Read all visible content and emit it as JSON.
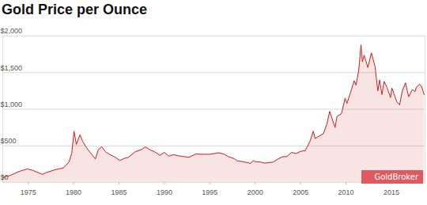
{
  "chart_data": {
    "type": "area",
    "title": "Gold Price per Ounce",
    "x": [
      1972.2,
      1973.0,
      1974.0,
      1974.9,
      1975.5,
      1976.6,
      1977.0,
      1978.0,
      1978.9,
      1979.5,
      1979.8,
      1980.05,
      1980.3,
      1980.7,
      1981.0,
      1981.5,
      1982.4,
      1982.7,
      1983.1,
      1983.5,
      1984.0,
      1984.5,
      1985.1,
      1985.6,
      1986.0,
      1986.8,
      1987.5,
      1987.9,
      1988.5,
      1988.9,
      1989.5,
      1990.0,
      1990.5,
      1991.0,
      1991.5,
      1992.0,
      1992.7,
      1993.5,
      1994.0,
      1995.0,
      1996.0,
      1996.6,
      1997.0,
      1997.7,
      1998.0,
      1998.6,
      1999.5,
      1999.8,
      2000.0,
      2000.5,
      2001.0,
      2001.5,
      2002.0,
      2002.5,
      2003.0,
      2003.5,
      2004.0,
      2004.5,
      2005.0,
      2005.5,
      2006.0,
      2006.4,
      2006.6,
      2007.0,
      2007.5,
      2007.9,
      2008.2,
      2008.8,
      2009.0,
      2009.5,
      2009.9,
      2010.1,
      2010.5,
      2010.9,
      2011.1,
      2011.4,
      2011.65,
      2011.8,
      2012.0,
      2012.4,
      2012.8,
      2013.2,
      2013.5,
      2013.7,
      2013.95,
      2014.2,
      2014.5,
      2014.9,
      2015.05,
      2015.6,
      2015.9,
      2016.2,
      2016.55,
      2016.9,
      2017.3,
      2017.6,
      2017.75,
      2018.1,
      2018.3,
      2018.6
    ],
    "values": [
      70,
      95,
      150,
      185,
      165,
      110,
      135,
      175,
      200,
      280,
      400,
      700,
      520,
      650,
      560,
      460,
      320,
      440,
      490,
      420,
      380,
      350,
      300,
      330,
      340,
      420,
      450,
      485,
      440,
      420,
      370,
      410,
      360,
      380,
      365,
      355,
      345,
      390,
      385,
      385,
      405,
      385,
      355,
      325,
      295,
      285,
      260,
      300,
      285,
      280,
      265,
      270,
      280,
      320,
      350,
      355,
      410,
      395,
      425,
      435,
      550,
      700,
      600,
      630,
      665,
      800,
      970,
      750,
      900,
      940,
      1150,
      1080,
      1230,
      1390,
      1330,
      1530,
      1880,
      1650,
      1740,
      1570,
      1770,
      1580,
      1250,
      1400,
      1200,
      1380,
      1300,
      1160,
      1290,
      1100,
      1060,
      1250,
      1360,
      1170,
      1270,
      1240,
      1300,
      1340,
      1320,
      1200
    ],
    "color": "#cc1f1f",
    "xlim": [
      1972.2,
      2018.7
    ],
    "xticks": [
      1975,
      1980,
      1985,
      1990,
      1995,
      2000,
      2005,
      2010,
      2015
    ],
    "ylim": [
      0,
      2000
    ],
    "yticks": [
      {
        "value": 0,
        "label": "$0"
      },
      {
        "value": 500,
        "label": "$500"
      },
      {
        "value": 1000,
        "label": "$1,000"
      },
      {
        "value": 1500,
        "label": "$1,500"
      },
      {
        "value": 2000,
        "label": "$2,000"
      }
    ],
    "grid": true,
    "annotations": [
      "GoldBroker"
    ]
  }
}
